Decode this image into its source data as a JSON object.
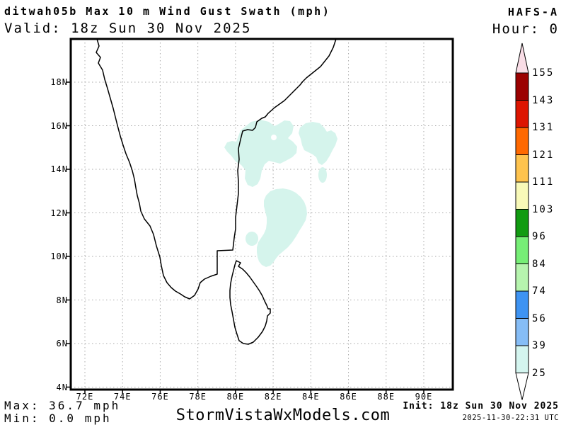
{
  "header": {
    "title": "ditwah05b Max 10 m Wind Gust Swath (mph)",
    "valid": "Valid: 18z Sun 30 Nov 2025",
    "model": "HAFS-A",
    "hour": "Hour: 0"
  },
  "map": {
    "lat_ticks": [
      "18N",
      "16N",
      "14N",
      "12N",
      "10N",
      "8N",
      "6N",
      "4N"
    ],
    "lon_ticks": [
      "72E",
      "74E",
      "76E",
      "78E",
      "80E",
      "82E",
      "84E",
      "86E",
      "88E",
      "90E"
    ],
    "swath_color": "#d5f4ec",
    "coastline_color": "#000000",
    "grid_color": "#a8a8a8",
    "frame_color": "#000000"
  },
  "colorbar": {
    "values": [
      "155",
      "143",
      "131",
      "121",
      "111",
      "103",
      "96",
      "84",
      "74",
      "56",
      "39",
      "25"
    ],
    "segment_colors": [
      "#9b0000",
      "#dd1500",
      "#ff6900",
      "#fec34e",
      "#f8f9b8",
      "#119b11",
      "#76ee76",
      "#b6f4ae",
      "#3e93f2",
      "#86bdf6",
      "#d4f5ef"
    ],
    "over_color": "#f9dde6",
    "under_color": "#ffffff"
  },
  "footer": {
    "max": "Max: 36.7 mph",
    "min": "Min: 0.0 mph",
    "site": "StormVistaWxModels.com",
    "init": "Init: 18z Sun 30 Nov 2025",
    "timestamp": "2025-11-30-22:31 UTC"
  },
  "chart_data": {
    "type": "map",
    "title": "ditwah05b Max 10 m Wind Gust Swath (mph)",
    "model": "HAFS-A",
    "forecast_hour": 0,
    "valid_time": "18z Sun 30 Nov 2025",
    "init_time": "18z Sun 30 Nov 2025",
    "lon_range": [
      "72E",
      "90E"
    ],
    "lat_range": [
      "4N",
      "18N"
    ],
    "colorbar_levels_mph": [
      25,
      39,
      56,
      74,
      84,
      96,
      103,
      111,
      121,
      131,
      143,
      155
    ],
    "max_mph": 36.7,
    "min_mph": 0.0,
    "shaded_swath_bin_mph": "25-39",
    "swath_location": "Bay of Bengal off SE India coast near Sri Lanka, ~9.5N-16.5N, 79.5E-84E"
  }
}
